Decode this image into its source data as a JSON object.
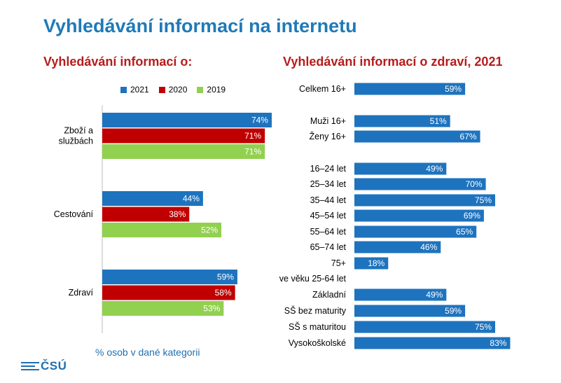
{
  "page_title": "Vyhledávání informací na internetu",
  "footnote": "% osob v dané kategorii",
  "logo_text": "ČSÚ",
  "colors": {
    "title": "#1f7ab8",
    "subtitle": "#b71c1c",
    "c2021": "#1e73be",
    "c2020": "#c00000",
    "c2019": "#92d050"
  },
  "chart_data": [
    {
      "type": "bar",
      "orientation": "horizontal",
      "title": "Vyhledávání informací o:",
      "categories": [
        [
          "Zboží a",
          "službách"
        ],
        [
          "Cestování"
        ],
        [
          "Zdraví"
        ]
      ],
      "series": [
        {
          "name": "2021",
          "color": "#1e73be",
          "values": [
            74,
            44,
            59
          ],
          "labels": [
            "74%",
            "44%",
            "59%"
          ]
        },
        {
          "name": "2020",
          "color": "#c00000",
          "values": [
            71,
            38,
            58
          ],
          "labels": [
            "71%",
            "38%",
            "58%"
          ]
        },
        {
          "name": "2019",
          "color": "#92d050",
          "values": [
            71,
            52,
            53
          ],
          "labels": [
            "71%",
            "52%",
            "53%"
          ]
        }
      ],
      "xlim": [
        0,
        100
      ],
      "legend": "top"
    },
    {
      "type": "bar",
      "orientation": "horizontal",
      "title": "Vyhledávání informací o zdraví, 2021",
      "rows": [
        {
          "label": "Celkem 16+",
          "value": 59,
          "value_label": "59%"
        },
        {
          "label": "Muži 16+",
          "value": 51,
          "value_label": "51%"
        },
        {
          "label": "Ženy 16+",
          "value": 67,
          "value_label": "67%"
        },
        {
          "label": "16–24 let",
          "value": 49,
          "value_label": "49%"
        },
        {
          "label": "25–34 let",
          "value": 70,
          "value_label": "70%"
        },
        {
          "label": "35–44 let",
          "value": 75,
          "value_label": "75%"
        },
        {
          "label": "45–54 let",
          "value": 69,
          "value_label": "69%"
        },
        {
          "label": "55–64 let",
          "value": 65,
          "value_label": "65%"
        },
        {
          "label": "65–74 let",
          "value": 46,
          "value_label": "46%"
        },
        {
          "label": "75+",
          "value": 18,
          "value_label": "18%"
        },
        {
          "label": "ve věku 25-64 let",
          "value": null,
          "value_label": ""
        },
        {
          "label": "Základní",
          "value": 49,
          "value_label": "49%"
        },
        {
          "label": "SŠ bez maturity",
          "value": 59,
          "value_label": "59%"
        },
        {
          "label": "SŠ s maturitou",
          "value": 75,
          "value_label": "75%"
        },
        {
          "label": "Vysokoškolské",
          "value": 83,
          "value_label": "83%"
        }
      ],
      "xlim": [
        0,
        100
      ],
      "color": "#1e73be"
    }
  ]
}
